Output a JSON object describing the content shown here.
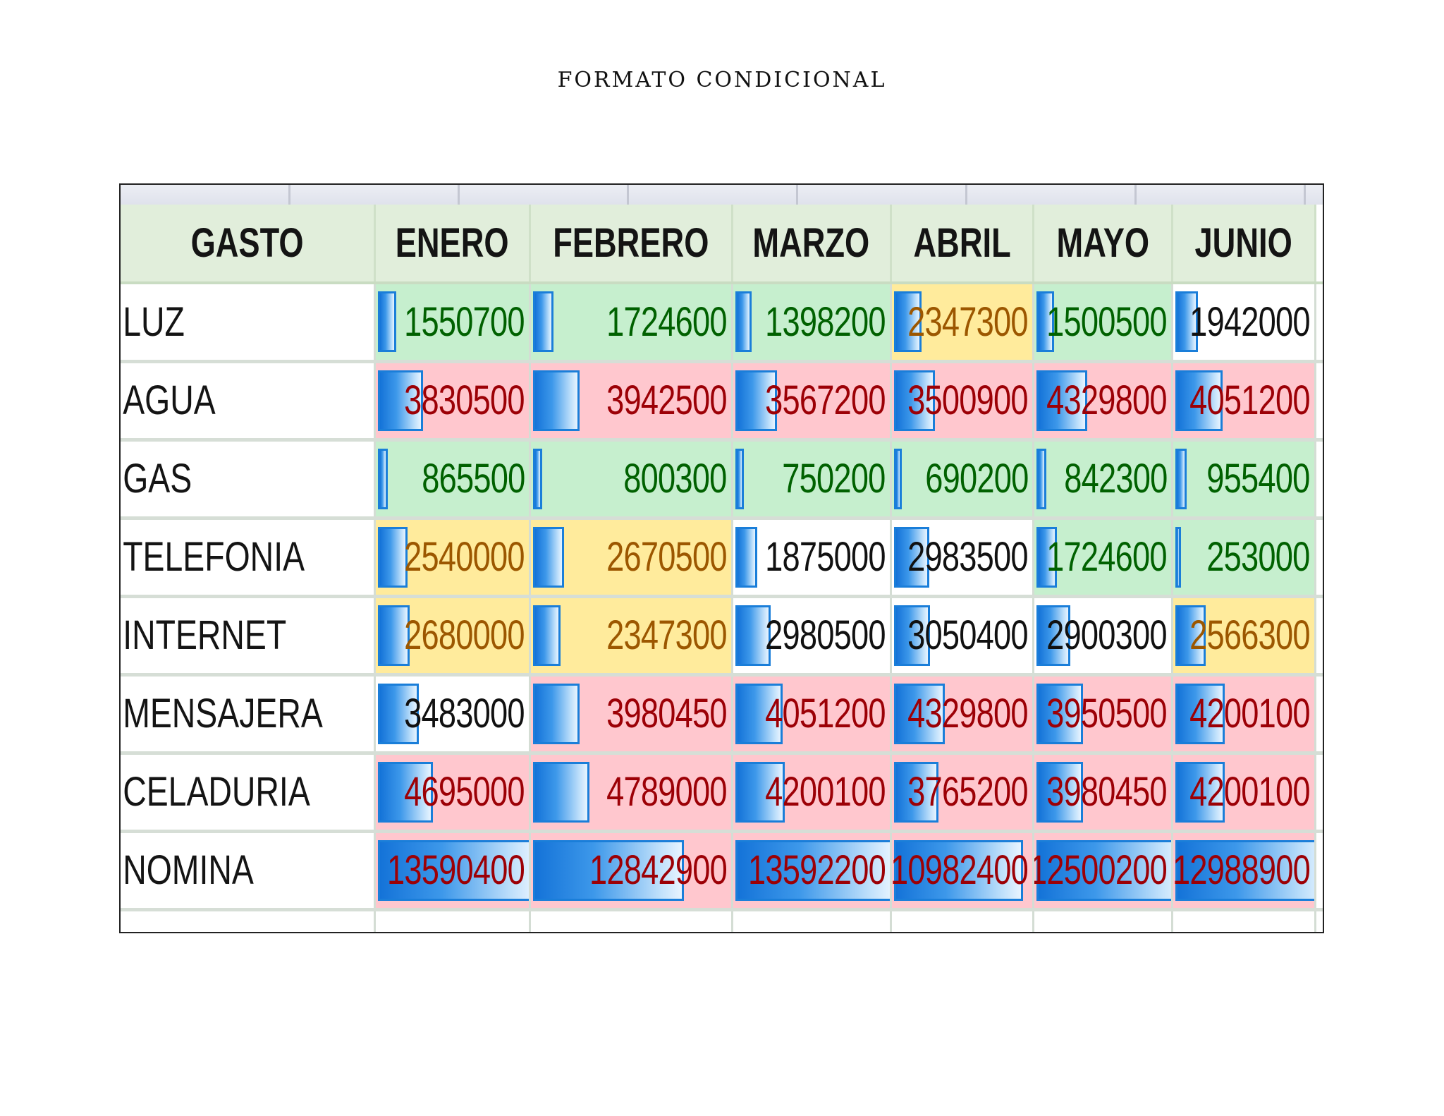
{
  "title": "FORMATO CONDICIONAL",
  "header": [
    "GASTO",
    "ENERO",
    "FEBRERO",
    "MARZO",
    "ABRIL",
    "MAYO",
    "JUNIO"
  ],
  "palette": {
    "green": {
      "bg": "#c6efce",
      "fg": "#006100"
    },
    "red": {
      "bg": "#ffc7ce",
      "fg": "#9c0006"
    },
    "yellow": {
      "bg": "#ffeb9c",
      "fg": "#9c5700"
    },
    "white": {
      "bg": "#ffffff",
      "fg": "#111111"
    },
    "header_bg": "#e1eedb",
    "databar": "#1a7ed9"
  },
  "rows": [
    {
      "label": "LUZ",
      "cells": [
        {
          "value": 1550700,
          "fmt": "green"
        },
        {
          "value": 1724600,
          "fmt": "green"
        },
        {
          "value": 1398200,
          "fmt": "green"
        },
        {
          "value": 2347300,
          "fmt": "yellow"
        },
        {
          "value": 1500500,
          "fmt": "green"
        },
        {
          "value": 1942000,
          "fmt": "white"
        }
      ]
    },
    {
      "label": "AGUA",
      "cells": [
        {
          "value": 3830500,
          "fmt": "red"
        },
        {
          "value": 3942500,
          "fmt": "red"
        },
        {
          "value": 3567200,
          "fmt": "red"
        },
        {
          "value": 3500900,
          "fmt": "red"
        },
        {
          "value": 4329800,
          "fmt": "red"
        },
        {
          "value": 4051200,
          "fmt": "red"
        }
      ]
    },
    {
      "label": "GAS",
      "cells": [
        {
          "value": 865500,
          "fmt": "green"
        },
        {
          "value": 800300,
          "fmt": "green"
        },
        {
          "value": 750200,
          "fmt": "green"
        },
        {
          "value": 690200,
          "fmt": "green"
        },
        {
          "value": 842300,
          "fmt": "green"
        },
        {
          "value": 955400,
          "fmt": "green"
        }
      ]
    },
    {
      "label": "TELEFONIA",
      "cells": [
        {
          "value": 2540000,
          "fmt": "yellow"
        },
        {
          "value": 2670500,
          "fmt": "yellow"
        },
        {
          "value": 1875000,
          "fmt": "white"
        },
        {
          "value": 2983500,
          "fmt": "white"
        },
        {
          "value": 1724600,
          "fmt": "green"
        },
        {
          "value": 253000,
          "fmt": "green"
        }
      ]
    },
    {
      "label": "INTERNET",
      "cells": [
        {
          "value": 2680000,
          "fmt": "yellow"
        },
        {
          "value": 2347300,
          "fmt": "yellow"
        },
        {
          "value": 2980500,
          "fmt": "white"
        },
        {
          "value": 3050400,
          "fmt": "white"
        },
        {
          "value": 2900300,
          "fmt": "white"
        },
        {
          "value": 2566300,
          "fmt": "yellow"
        }
      ]
    },
    {
      "label": "MENSAJERA",
      "cells": [
        {
          "value": 3483000,
          "fmt": "white"
        },
        {
          "value": 3980450,
          "fmt": "red"
        },
        {
          "value": 4051200,
          "fmt": "red"
        },
        {
          "value": 4329800,
          "fmt": "red"
        },
        {
          "value": 3950500,
          "fmt": "red"
        },
        {
          "value": 4200100,
          "fmt": "red"
        }
      ]
    },
    {
      "label": "CELADURIA",
      "cells": [
        {
          "value": 4695000,
          "fmt": "red"
        },
        {
          "value": 4789000,
          "fmt": "red"
        },
        {
          "value": 4200100,
          "fmt": "red"
        },
        {
          "value": 3765200,
          "fmt": "red"
        },
        {
          "value": 3980450,
          "fmt": "red"
        },
        {
          "value": 4200100,
          "fmt": "red"
        }
      ]
    },
    {
      "label": "NOMINA",
      "cells": [
        {
          "value": 13590400,
          "fmt": "red"
        },
        {
          "value": 12842900,
          "fmt": "red"
        },
        {
          "value": 13592200,
          "fmt": "red"
        },
        {
          "value": 10982400,
          "fmt": "red"
        },
        {
          "value": 12500200,
          "fmt": "red"
        },
        {
          "value": 12988900,
          "fmt": "red"
        }
      ]
    }
  ]
}
